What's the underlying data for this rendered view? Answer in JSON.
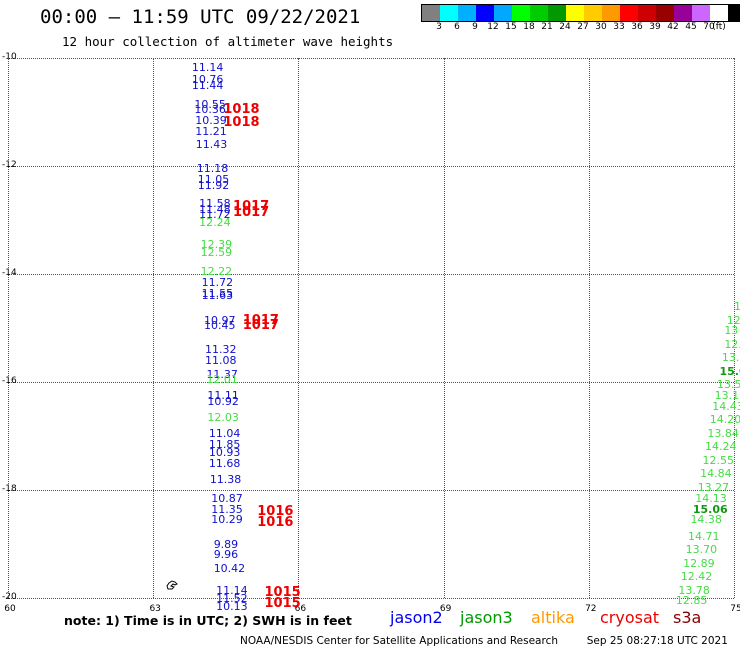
{
  "title": "00:00 – 11:59 UTC 09/22/2021",
  "subtitle": "12 hour collection of altimeter wave heights",
  "legend": {
    "unit": "(ft)",
    "colors": [
      "#808080",
      "#00ffff",
      "#00b0ff",
      "#0000ff",
      "#00a8ff",
      "#00ff00",
      "#00cc00",
      "#009900",
      "#ffff00",
      "#ffcc00",
      "#ff9900",
      "#ff0000",
      "#cc0000",
      "#990000",
      "#990099",
      "#cc66ff",
      "#ffffff",
      "#000000"
    ],
    "labels": [
      "3",
      "6",
      "9",
      "12",
      "15",
      "18",
      "21",
      "24",
      "27",
      "30",
      "33",
      "36",
      "39",
      "42",
      "45",
      "70"
    ]
  },
  "axes": {
    "lat_labels": [
      "-10",
      "-12",
      "-14",
      "-16",
      "-18",
      "-20"
    ],
    "lon_labels": [
      "60",
      "63",
      "66",
      "69",
      "72",
      "75"
    ]
  },
  "chart_data": {
    "type": "scatter",
    "x_range": [
      60,
      75
    ],
    "y_range": [
      -20,
      -10
    ],
    "tracks": [
      {
        "sat": "jason2",
        "points": [
          {
            "lon": 63.8,
            "lat": -10.08,
            "v": "11.14"
          },
          {
            "lon": 63.8,
            "lat": -10.3,
            "v": "10.76"
          },
          {
            "lon": 63.8,
            "lat": -10.4,
            "v": "11.44"
          },
          {
            "lon": 63.85,
            "lat": -10.75,
            "v": "10.55"
          },
          {
            "lon": 63.85,
            "lat": -10.85,
            "v": "10.36"
          },
          {
            "lon": 63.87,
            "lat": -11.05,
            "v": "10.39"
          },
          {
            "lon": 63.87,
            "lat": -11.25,
            "v": "11.21"
          },
          {
            "lon": 63.88,
            "lat": -11.5,
            "v": "11.43"
          },
          {
            "lon": 63.9,
            "lat": -11.95,
            "v": "11.18"
          },
          {
            "lon": 63.92,
            "lat": -12.15,
            "v": "11.05"
          },
          {
            "lon": 63.92,
            "lat": -12.25,
            "v": "11.92"
          },
          {
            "lon": 63.95,
            "lat": -12.6,
            "v": "11.58"
          },
          {
            "lon": 63.95,
            "lat": -12.7,
            "v": "11.48"
          },
          {
            "lon": 63.95,
            "lat": -12.8,
            "v": "11.72"
          },
          {
            "lon": 64.0,
            "lat": -14.05,
            "v": "11.72"
          },
          {
            "lon": 64.0,
            "lat": -14.25,
            "v": "11.55"
          },
          {
            "lon": 64.0,
            "lat": -14.3,
            "v": "11.63"
          },
          {
            "lon": 64.05,
            "lat": -14.75,
            "v": "10.97"
          },
          {
            "lon": 64.05,
            "lat": -14.85,
            "v": "10.45"
          },
          {
            "lon": 64.07,
            "lat": -15.3,
            "v": "11.32"
          },
          {
            "lon": 64.07,
            "lat": -15.5,
            "v": "11.08"
          },
          {
            "lon": 64.1,
            "lat": -15.75,
            "v": "11.37"
          },
          {
            "lon": 64.12,
            "lat": -16.15,
            "v": "11.11"
          },
          {
            "lon": 64.12,
            "lat": -16.25,
            "v": "10.92"
          },
          {
            "lon": 64.15,
            "lat": -16.85,
            "v": "11.04"
          },
          {
            "lon": 64.15,
            "lat": -17.05,
            "v": "11.85"
          },
          {
            "lon": 64.15,
            "lat": -17.2,
            "v": "10.93"
          },
          {
            "lon": 64.15,
            "lat": -17.4,
            "v": "11.68"
          },
          {
            "lon": 64.17,
            "lat": -17.7,
            "v": "11.38"
          },
          {
            "lon": 64.2,
            "lat": -18.05,
            "v": "10.87"
          },
          {
            "lon": 64.2,
            "lat": -18.25,
            "v": "11.35"
          },
          {
            "lon": 64.2,
            "lat": -18.45,
            "v": "10.29"
          },
          {
            "lon": 64.25,
            "lat": -18.9,
            "v": "9.89"
          },
          {
            "lon": 64.25,
            "lat": -19.1,
            "v": "9.96"
          },
          {
            "lon": 64.25,
            "lat": -19.35,
            "v": "10.42"
          },
          {
            "lon": 64.3,
            "lat": -19.75,
            "v": "11.14"
          },
          {
            "lon": 64.3,
            "lat": -19.9,
            "v": "11.52"
          },
          {
            "lon": 64.3,
            "lat": -20.05,
            "v": "10.13"
          }
        ]
      },
      {
        "sat": "jason3",
        "points": [
          {
            "lon": 63.95,
            "lat": -12.95,
            "v": "12.24"
          },
          {
            "lon": 63.98,
            "lat": -13.35,
            "v": "12.39"
          },
          {
            "lon": 63.98,
            "lat": -13.5,
            "v": "12.59"
          },
          {
            "lon": 63.98,
            "lat": -13.85,
            "v": "12.22"
          },
          {
            "lon": 64.1,
            "lat": -15.85,
            "v": "12.01"
          },
          {
            "lon": 64.12,
            "lat": -16.55,
            "v": "12.03"
          }
        ]
      },
      {
        "sat": "jason3",
        "points": [
          {
            "lon": 75.0,
            "lat": -14.5,
            "v": "1"
          },
          {
            "lon": 74.85,
            "lat": -14.75,
            "v": "12"
          },
          {
            "lon": 74.8,
            "lat": -14.95,
            "v": "13"
          },
          {
            "lon": 74.8,
            "lat": -15.2,
            "v": "12."
          },
          {
            "lon": 74.75,
            "lat": -15.45,
            "v": "13."
          },
          {
            "lon": 74.7,
            "lat": -15.7,
            "v": "15.0",
            "bold": true
          },
          {
            "lon": 74.65,
            "lat": -15.95,
            "v": "13.5"
          },
          {
            "lon": 74.6,
            "lat": -16.15,
            "v": "13.19"
          },
          {
            "lon": 74.55,
            "lat": -16.35,
            "v": "14.43"
          },
          {
            "lon": 74.5,
            "lat": -16.6,
            "v": "14.20"
          },
          {
            "lon": 74.45,
            "lat": -16.85,
            "v": "13.84"
          },
          {
            "lon": 74.4,
            "lat": -17.1,
            "v": "14.24"
          },
          {
            "lon": 74.35,
            "lat": -17.35,
            "v": "12.55"
          },
          {
            "lon": 74.3,
            "lat": -17.6,
            "v": "14.84"
          },
          {
            "lon": 74.25,
            "lat": -17.85,
            "v": "13.27"
          },
          {
            "lon": 74.2,
            "lat": -18.05,
            "v": "14.13"
          },
          {
            "lon": 74.15,
            "lat": -18.25,
            "v": "15.06",
            "bold": true
          },
          {
            "lon": 74.1,
            "lat": -18.45,
            "v": "14.38"
          },
          {
            "lon": 74.05,
            "lat": -18.75,
            "v": "14.71"
          },
          {
            "lon": 74.0,
            "lat": -19.0,
            "v": "13.70"
          },
          {
            "lon": 73.95,
            "lat": -19.25,
            "v": "12.89"
          },
          {
            "lon": 73.9,
            "lat": -19.5,
            "v": "12.42"
          },
          {
            "lon": 73.85,
            "lat": -19.75,
            "v": "13.78"
          },
          {
            "lon": 73.8,
            "lat": -19.95,
            "v": "12.85"
          }
        ]
      },
      {
        "sat": "pressure",
        "points": [
          {
            "lon": 64.45,
            "lat": -10.85,
            "v": "1018"
          },
          {
            "lon": 64.45,
            "lat": -11.1,
            "v": "1018"
          },
          {
            "lon": 64.65,
            "lat": -12.65,
            "v": "1017"
          },
          {
            "lon": 64.65,
            "lat": -12.75,
            "v": "1017"
          },
          {
            "lon": 64.85,
            "lat": -14.75,
            "v": "1017"
          },
          {
            "lon": 64.85,
            "lat": -14.85,
            "v": "1017"
          },
          {
            "lon": 65.15,
            "lat": -18.3,
            "v": "1016"
          },
          {
            "lon": 65.15,
            "lat": -18.5,
            "v": "1016"
          },
          {
            "lon": 65.3,
            "lat": -19.8,
            "v": "1015"
          },
          {
            "lon": 65.3,
            "lat": -20.0,
            "v": "1015"
          }
        ]
      }
    ]
  },
  "footer": {
    "note": "note: 1) Time is in UTC; 2) SWH is in feet",
    "satellites": [
      {
        "name": "jason2",
        "color": "#0000ee"
      },
      {
        "name": "jason3",
        "color": "#009900"
      },
      {
        "name": "altika",
        "color": "#ff9900"
      },
      {
        "name": "cryosat",
        "color": "#ee0000"
      },
      {
        "name": "s3a",
        "color": "#880000"
      }
    ],
    "credit": "NOAA/NESDIS Center for Satellite Applications and Research",
    "timestamp": "Sep 25 08:27:18 UTC 2021"
  }
}
